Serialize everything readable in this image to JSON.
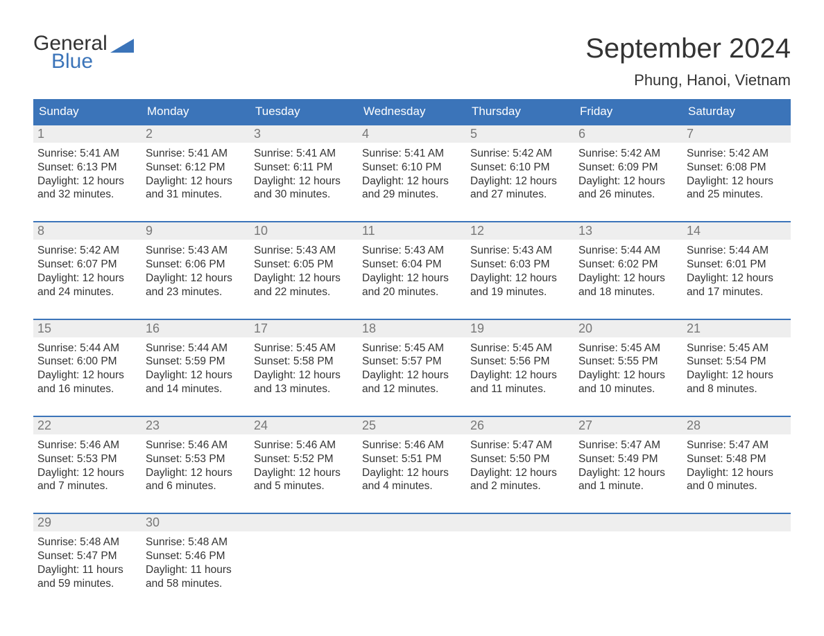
{
  "logo": {
    "line1": "General",
    "line2": "Blue"
  },
  "title": "September 2024",
  "location": "Phung, Hanoi, Vietnam",
  "colors": {
    "header_bg": "#3b74b9",
    "header_text": "#ffffff",
    "daynum_bg": "#eeeeee",
    "daynum_color": "#777777",
    "body_text": "#333333",
    "week_border": "#3b74b9",
    "page_bg": "#ffffff"
  },
  "calendar": {
    "type": "table",
    "columns": [
      "Sunday",
      "Monday",
      "Tuesday",
      "Wednesday",
      "Thursday",
      "Friday",
      "Saturday"
    ],
    "weeks": [
      [
        {
          "n": "1",
          "sunrise": "Sunrise: 5:41 AM",
          "sunset": "Sunset: 6:13 PM",
          "d1": "Daylight: 12 hours",
          "d2": "and 32 minutes."
        },
        {
          "n": "2",
          "sunrise": "Sunrise: 5:41 AM",
          "sunset": "Sunset: 6:12 PM",
          "d1": "Daylight: 12 hours",
          "d2": "and 31 minutes."
        },
        {
          "n": "3",
          "sunrise": "Sunrise: 5:41 AM",
          "sunset": "Sunset: 6:11 PM",
          "d1": "Daylight: 12 hours",
          "d2": "and 30 minutes."
        },
        {
          "n": "4",
          "sunrise": "Sunrise: 5:41 AM",
          "sunset": "Sunset: 6:10 PM",
          "d1": "Daylight: 12 hours",
          "d2": "and 29 minutes."
        },
        {
          "n": "5",
          "sunrise": "Sunrise: 5:42 AM",
          "sunset": "Sunset: 6:10 PM",
          "d1": "Daylight: 12 hours",
          "d2": "and 27 minutes."
        },
        {
          "n": "6",
          "sunrise": "Sunrise: 5:42 AM",
          "sunset": "Sunset: 6:09 PM",
          "d1": "Daylight: 12 hours",
          "d2": "and 26 minutes."
        },
        {
          "n": "7",
          "sunrise": "Sunrise: 5:42 AM",
          "sunset": "Sunset: 6:08 PM",
          "d1": "Daylight: 12 hours",
          "d2": "and 25 minutes."
        }
      ],
      [
        {
          "n": "8",
          "sunrise": "Sunrise: 5:42 AM",
          "sunset": "Sunset: 6:07 PM",
          "d1": "Daylight: 12 hours",
          "d2": "and 24 minutes."
        },
        {
          "n": "9",
          "sunrise": "Sunrise: 5:43 AM",
          "sunset": "Sunset: 6:06 PM",
          "d1": "Daylight: 12 hours",
          "d2": "and 23 minutes."
        },
        {
          "n": "10",
          "sunrise": "Sunrise: 5:43 AM",
          "sunset": "Sunset: 6:05 PM",
          "d1": "Daylight: 12 hours",
          "d2": "and 22 minutes."
        },
        {
          "n": "11",
          "sunrise": "Sunrise: 5:43 AM",
          "sunset": "Sunset: 6:04 PM",
          "d1": "Daylight: 12 hours",
          "d2": "and 20 minutes."
        },
        {
          "n": "12",
          "sunrise": "Sunrise: 5:43 AM",
          "sunset": "Sunset: 6:03 PM",
          "d1": "Daylight: 12 hours",
          "d2": "and 19 minutes."
        },
        {
          "n": "13",
          "sunrise": "Sunrise: 5:44 AM",
          "sunset": "Sunset: 6:02 PM",
          "d1": "Daylight: 12 hours",
          "d2": "and 18 minutes."
        },
        {
          "n": "14",
          "sunrise": "Sunrise: 5:44 AM",
          "sunset": "Sunset: 6:01 PM",
          "d1": "Daylight: 12 hours",
          "d2": "and 17 minutes."
        }
      ],
      [
        {
          "n": "15",
          "sunrise": "Sunrise: 5:44 AM",
          "sunset": "Sunset: 6:00 PM",
          "d1": "Daylight: 12 hours",
          "d2": "and 16 minutes."
        },
        {
          "n": "16",
          "sunrise": "Sunrise: 5:44 AM",
          "sunset": "Sunset: 5:59 PM",
          "d1": "Daylight: 12 hours",
          "d2": "and 14 minutes."
        },
        {
          "n": "17",
          "sunrise": "Sunrise: 5:45 AM",
          "sunset": "Sunset: 5:58 PM",
          "d1": "Daylight: 12 hours",
          "d2": "and 13 minutes."
        },
        {
          "n": "18",
          "sunrise": "Sunrise: 5:45 AM",
          "sunset": "Sunset: 5:57 PM",
          "d1": "Daylight: 12 hours",
          "d2": "and 12 minutes."
        },
        {
          "n": "19",
          "sunrise": "Sunrise: 5:45 AM",
          "sunset": "Sunset: 5:56 PM",
          "d1": "Daylight: 12 hours",
          "d2": "and 11 minutes."
        },
        {
          "n": "20",
          "sunrise": "Sunrise: 5:45 AM",
          "sunset": "Sunset: 5:55 PM",
          "d1": "Daylight: 12 hours",
          "d2": "and 10 minutes."
        },
        {
          "n": "21",
          "sunrise": "Sunrise: 5:45 AM",
          "sunset": "Sunset: 5:54 PM",
          "d1": "Daylight: 12 hours",
          "d2": "and 8 minutes."
        }
      ],
      [
        {
          "n": "22",
          "sunrise": "Sunrise: 5:46 AM",
          "sunset": "Sunset: 5:53 PM",
          "d1": "Daylight: 12 hours",
          "d2": "and 7 minutes."
        },
        {
          "n": "23",
          "sunrise": "Sunrise: 5:46 AM",
          "sunset": "Sunset: 5:53 PM",
          "d1": "Daylight: 12 hours",
          "d2": "and 6 minutes."
        },
        {
          "n": "24",
          "sunrise": "Sunrise: 5:46 AM",
          "sunset": "Sunset: 5:52 PM",
          "d1": "Daylight: 12 hours",
          "d2": "and 5 minutes."
        },
        {
          "n": "25",
          "sunrise": "Sunrise: 5:46 AM",
          "sunset": "Sunset: 5:51 PM",
          "d1": "Daylight: 12 hours",
          "d2": "and 4 minutes."
        },
        {
          "n": "26",
          "sunrise": "Sunrise: 5:47 AM",
          "sunset": "Sunset: 5:50 PM",
          "d1": "Daylight: 12 hours",
          "d2": "and 2 minutes."
        },
        {
          "n": "27",
          "sunrise": "Sunrise: 5:47 AM",
          "sunset": "Sunset: 5:49 PM",
          "d1": "Daylight: 12 hours",
          "d2": "and 1 minute."
        },
        {
          "n": "28",
          "sunrise": "Sunrise: 5:47 AM",
          "sunset": "Sunset: 5:48 PM",
          "d1": "Daylight: 12 hours",
          "d2": "and 0 minutes."
        }
      ],
      [
        {
          "n": "29",
          "sunrise": "Sunrise: 5:48 AM",
          "sunset": "Sunset: 5:47 PM",
          "d1": "Daylight: 11 hours",
          "d2": "and 59 minutes."
        },
        {
          "n": "30",
          "sunrise": "Sunrise: 5:48 AM",
          "sunset": "Sunset: 5:46 PM",
          "d1": "Daylight: 11 hours",
          "d2": "and 58 minutes."
        },
        null,
        null,
        null,
        null,
        null
      ]
    ]
  }
}
